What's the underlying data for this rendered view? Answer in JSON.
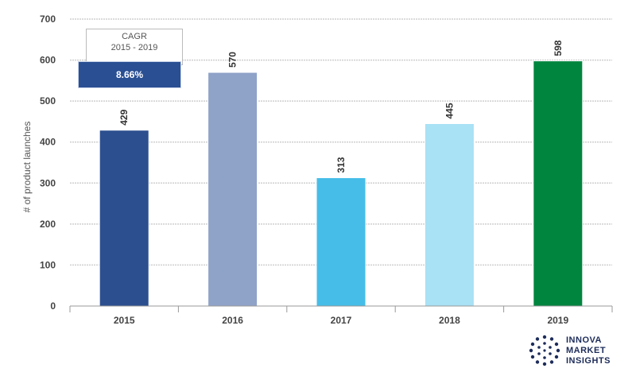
{
  "chart_data": {
    "type": "bar",
    "categories": [
      "2015",
      "2016",
      "2017",
      "2018",
      "2019"
    ],
    "values": [
      429,
      570,
      313,
      445,
      598
    ],
    "bar_colors": [
      "#2b4f8f",
      "#8fa3c9",
      "#45bde8",
      "#a9e1f5",
      "#00853f"
    ],
    "ylabel": "# of product launches",
    "ylim": [
      0,
      700
    ],
    "yticks": [
      0,
      100,
      200,
      300,
      400,
      500,
      600,
      700
    ],
    "grid": true
  },
  "cagr": {
    "title_line1": "CAGR",
    "title_line2": "2015 - 2019",
    "value": "8.66%"
  },
  "logo": {
    "line1": "INNOVA",
    "line2": "MARKET",
    "line3": "INSIGHTS"
  }
}
